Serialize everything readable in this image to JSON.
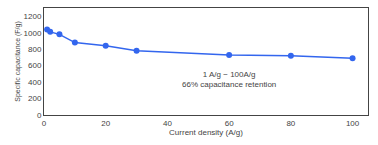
{
  "chart_data": {
    "type": "line",
    "x": [
      1,
      2,
      5,
      10,
      20,
      30,
      60,
      80,
      100
    ],
    "values": [
      1040,
      1010,
      980,
      880,
      840,
      780,
      730,
      720,
      690
    ],
    "color": "#3366ee",
    "marker": "circle",
    "xlabel": "Current density (A/g)",
    "ylabel": "Specific capacitance (F/g)",
    "xlim": [
      0,
      105
    ],
    "ylim": [
      0,
      1300
    ],
    "xticks": [
      0,
      20,
      40,
      60,
      80,
      100
    ],
    "yticks": [
      0,
      200,
      400,
      600,
      800,
      1000,
      1200
    ],
    "annotations": [
      {
        "text": "1 A/g − 100A/g\n66% capacitance retention",
        "x": 60,
        "y": 430
      }
    ],
    "grid": false
  }
}
